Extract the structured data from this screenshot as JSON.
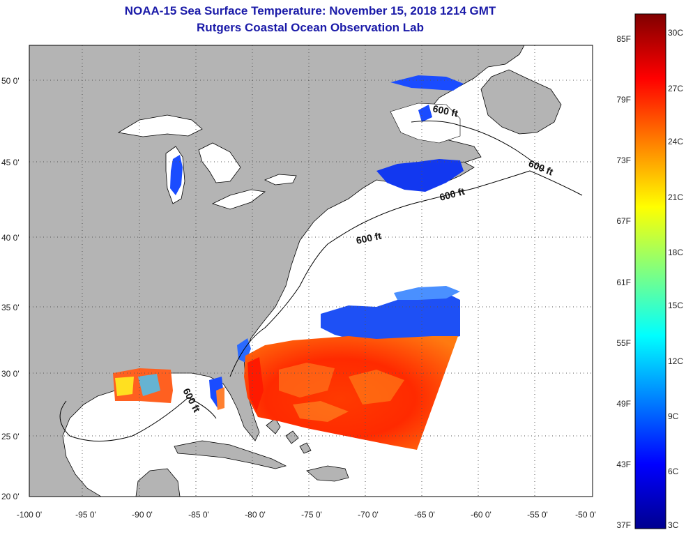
{
  "header": {
    "title": "NOAA-15 Sea Surface Temperature:  November 15, 2018 1214 GMT",
    "subtitle": "Rutgers Coastal Ocean Observation Lab"
  },
  "map": {
    "lon_ticks": [
      "-100 0'",
      "-95 0'",
      "-90 0'",
      "-85 0'",
      "-80 0'",
      "-75 0'",
      "-70 0'",
      "-65 0'",
      "-60 0'",
      "-55 0'",
      "-50 0'"
    ],
    "lat_ticks": [
      "50 0'",
      "45 0'",
      "40 0'",
      "35 0'",
      "30 0'",
      "25 0'",
      "20 0'"
    ],
    "contour_label": "600 ft",
    "colors": {
      "land": "#b4b4b4",
      "ocean": "#ffffff",
      "grid": "#555555"
    }
  },
  "colorbar": {
    "fahrenheit": [
      "85F",
      "79F",
      "73F",
      "67F",
      "61F",
      "55F",
      "49F",
      "43F",
      "37F"
    ],
    "celsius": [
      "30C",
      "27C",
      "24C",
      "21C",
      "18C",
      "15C",
      "12C",
      "9C",
      "6C",
      "3C"
    ],
    "stops": [
      "#00008f",
      "#0000ff",
      "#0080ff",
      "#00ffff",
      "#80ff80",
      "#ffff00",
      "#ff8000",
      "#ff0000",
      "#800000"
    ]
  }
}
